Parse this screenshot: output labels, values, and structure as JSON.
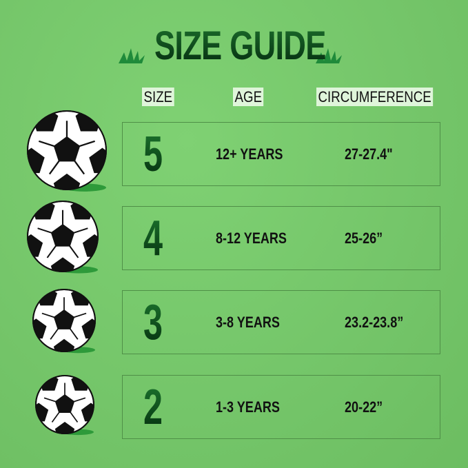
{
  "title": "SIZE GUIDE",
  "headers": {
    "size": "SIZE",
    "age": "AGE",
    "circumference": "CIRCUMFERENCE"
  },
  "rows": [
    {
      "size": "5",
      "age": "12+ YEARS",
      "circumference": "27-27.4\""
    },
    {
      "size": "4",
      "age": "8-12 YEARS",
      "circumference": "25-26”"
    },
    {
      "size": "3",
      "age": "3-8 YEARS",
      "circumference": "23.2-23.8”"
    },
    {
      "size": "2",
      "age": "1-3 YEARS",
      "circumference": "20-22”"
    }
  ],
  "colors": {
    "background": "#77c96c",
    "title": "#0b4119",
    "header_highlight": "#dff5da"
  },
  "icons": [
    "grass-icon",
    "soccer-ball-icon"
  ]
}
